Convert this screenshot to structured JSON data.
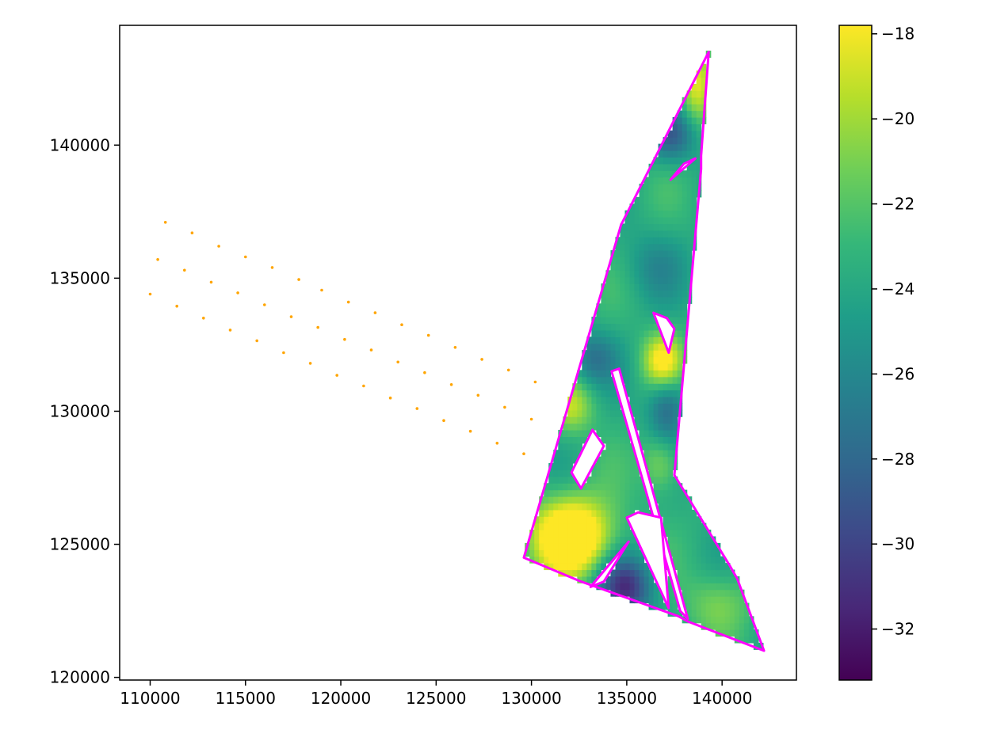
{
  "chart_data": {
    "type": "heatmap",
    "title": "",
    "xlabel": "",
    "ylabel": "",
    "xlim": [
      108400,
      143900
    ],
    "ylim": [
      119900,
      144500
    ],
    "grid": false,
    "x_ticks": [
      110000,
      115000,
      120000,
      125000,
      130000,
      135000,
      140000
    ],
    "y_ticks": [
      120000,
      125000,
      130000,
      135000,
      140000
    ],
    "colorbar": {
      "range": [
        -33.2,
        -17.8
      ],
      "ticks": [
        -18,
        -20,
        -22,
        -24,
        -26,
        -28,
        -30,
        -32
      ],
      "tick_labels": [
        "−18",
        "−20",
        "−22",
        "−24",
        "−26",
        "−28",
        "−30",
        "−32"
      ],
      "colormap": "viridis",
      "stops": [
        "#440154",
        "#482878",
        "#3e4989",
        "#31688e",
        "#26828e",
        "#1f9e89",
        "#35b779",
        "#6ece58",
        "#b5de2b",
        "#fde725"
      ]
    },
    "boundary_color": "#ff00ff",
    "points_color": "#ffa500",
    "outer_polygon": [
      [
        129600,
        124500
      ],
      [
        132600,
        123600
      ],
      [
        137700,
        122300
      ],
      [
        138200,
        122100
      ],
      [
        142200,
        121000
      ],
      [
        140800,
        123700
      ],
      [
        140400,
        124200
      ],
      [
        137500,
        127600
      ],
      [
        138900,
        139100
      ],
      [
        138900,
        139600
      ],
      [
        139300,
        143500
      ],
      [
        134700,
        137000
      ],
      [
        129600,
        124500
      ]
    ],
    "holes": [
      [
        [
          133100,
          123400
        ],
        [
          135100,
          125100
        ],
        [
          133800,
          123600
        ]
      ],
      [
        [
          134600,
          131600
        ],
        [
          134200,
          131500
        ],
        [
          137800,
          122500
        ],
        [
          138200,
          122200
        ]
      ],
      [
        [
          135000,
          126000
        ],
        [
          137200,
          122600
        ],
        [
          136800,
          126000
        ],
        [
          135600,
          126200
        ]
      ],
      [
        [
          132100,
          127700
        ],
        [
          133200,
          129300
        ],
        [
          133800,
          128700
        ],
        [
          132600,
          127100
        ]
      ],
      [
        [
          137300,
          138700
        ],
        [
          138600,
          139500
        ],
        [
          138000,
          139300
        ]
      ],
      [
        [
          136400,
          133700
        ],
        [
          137200,
          132200
        ],
        [
          137500,
          133100
        ],
        [
          137100,
          133500
        ]
      ]
    ],
    "field_anomalies": [
      {
        "x": 132100,
        "y": 125300,
        "sx": 1400,
        "sy": 1000,
        "a": 10.0
      },
      {
        "x": 136900,
        "y": 131900,
        "sx": 700,
        "sy": 700,
        "a": 6.5
      },
      {
        "x": 138600,
        "y": 142300,
        "sx": 600,
        "sy": 1000,
        "a": 5.0
      },
      {
        "x": 132100,
        "y": 130200,
        "sx": 800,
        "sy": 700,
        "a": 4.0
      },
      {
        "x": 136800,
        "y": 128100,
        "sx": 700,
        "sy": 800,
        "a": 3.5
      },
      {
        "x": 139800,
        "y": 122800,
        "sx": 1200,
        "sy": 800,
        "a": 2.5
      },
      {
        "x": 134900,
        "y": 123400,
        "sx": 1000,
        "sy": 800,
        "a": -7.5
      },
      {
        "x": 137100,
        "y": 130100,
        "sx": 700,
        "sy": 1000,
        "a": -4.5
      },
      {
        "x": 137300,
        "y": 140400,
        "sx": 900,
        "sy": 700,
        "a": -5.0
      },
      {
        "x": 133200,
        "y": 132000,
        "sx": 900,
        "sy": 700,
        "a": -3.5
      },
      {
        "x": 136500,
        "y": 135500,
        "sx": 1200,
        "sy": 900,
        "a": -2.0
      }
    ],
    "field_base": -23.5,
    "points": [
      [
        110800,
        137100
      ],
      [
        112200,
        136700
      ],
      [
        113600,
        136200
      ],
      [
        115000,
        135800
      ],
      [
        116400,
        135400
      ],
      [
        117800,
        134950
      ],
      [
        110400,
        135700
      ],
      [
        111800,
        135300
      ],
      [
        113200,
        134850
      ],
      [
        114600,
        134450
      ],
      [
        116000,
        134000
      ],
      [
        117400,
        133550
      ],
      [
        118800,
        133150
      ],
      [
        120200,
        132700
      ],
      [
        121600,
        132300
      ],
      [
        123000,
        131850
      ],
      [
        124400,
        131450
      ],
      [
        125800,
        131000
      ],
      [
        127200,
        130600
      ],
      [
        128600,
        130150
      ],
      [
        130000,
        129700
      ],
      [
        110000,
        134400
      ],
      [
        111400,
        133950
      ],
      [
        112800,
        133500
      ],
      [
        114200,
        133050
      ],
      [
        115600,
        132650
      ],
      [
        117000,
        132200
      ],
      [
        118400,
        131800
      ],
      [
        119800,
        131350
      ],
      [
        121200,
        130950
      ],
      [
        122600,
        130500
      ],
      [
        124000,
        130100
      ],
      [
        125400,
        129650
      ],
      [
        126800,
        129250
      ],
      [
        128200,
        128800
      ],
      [
        129600,
        128400
      ],
      [
        119000,
        134550
      ],
      [
        120400,
        134100
      ],
      [
        121800,
        133700
      ],
      [
        123200,
        133250
      ],
      [
        124600,
        132850
      ],
      [
        126000,
        132400
      ],
      [
        127400,
        131950
      ],
      [
        128800,
        131550
      ],
      [
        130200,
        131100
      ]
    ]
  }
}
